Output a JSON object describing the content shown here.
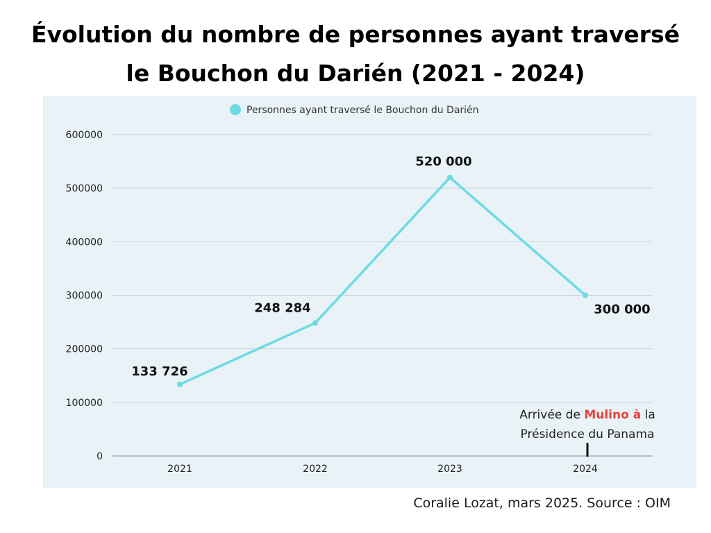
{
  "title": {
    "line1": "Évolution du nombre de personnes ayant traversé",
    "line2": "le Bouchon du Darién (2021 - 2024)"
  },
  "credit": "Coralie Lozat, mars 2025. Source : OIM",
  "colors": {
    "line": "#6cdbe3",
    "highlight": "#e8413c",
    "panel": "#e9f2f6",
    "grid": "#c9d2d9"
  },
  "chart_data": {
    "type": "line",
    "title": "Évolution du nombre de personnes ayant traversé le Bouchon du Darién (2021 - 2024)",
    "xlabel": "",
    "ylabel": "",
    "categories": [
      "2021",
      "2022",
      "2023",
      "2024"
    ],
    "series": [
      {
        "name": "Personnes ayant traversé le Bouchon du Darién",
        "values": [
          133726,
          248284,
          520000,
          300000
        ],
        "labels": [
          "133 726",
          "248 284",
          "520 000",
          "300 000"
        ]
      }
    ],
    "ylim": [
      0,
      600000
    ],
    "yticks": [
      0,
      100000,
      200000,
      300000,
      400000,
      500000,
      600000
    ],
    "ytick_labels": [
      "0",
      "100000",
      "200000",
      "300000",
      "400000",
      "500000",
      "600000"
    ],
    "grid": true,
    "legend": "top-center",
    "annotation": {
      "category": "2024",
      "parts": [
        "Arrivée de ",
        "Mulino à",
        " la",
        "Présidence du Panama"
      ]
    }
  }
}
